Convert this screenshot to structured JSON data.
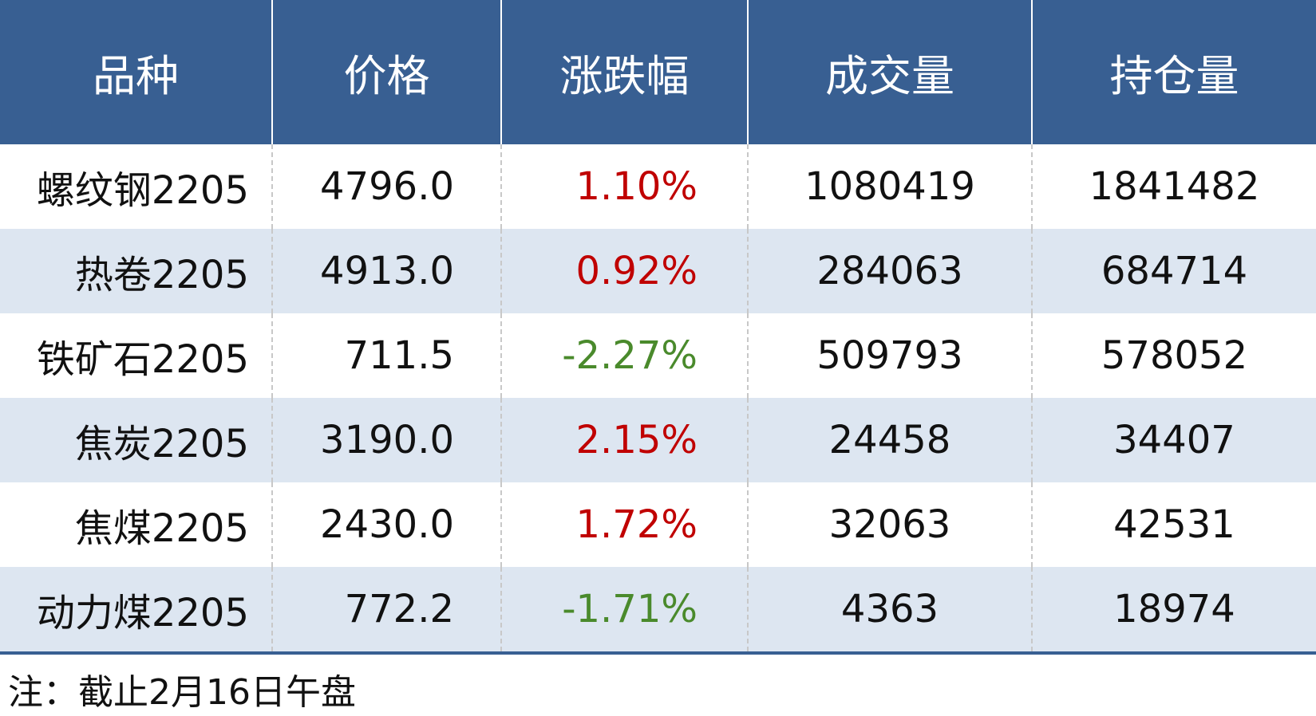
{
  "table": {
    "headers": [
      "品种",
      "价格",
      "涨跌幅",
      "成交量",
      "持仓量"
    ],
    "rows": [
      [
        "螺纹钢2205",
        "4796.0",
        "1.10%",
        "1080419",
        "1841482"
      ],
      [
        "热卷2205",
        "4913.0",
        "0.92%",
        "284063",
        "684714"
      ],
      [
        "铁矿石2205",
        "711.5",
        "-2.27%",
        "509793",
        "578052"
      ],
      [
        "焦炭2205",
        "3190.0",
        "2.15%",
        "24458",
        "34407"
      ],
      [
        "焦煤2205",
        "2430.0",
        "1.72%",
        "32063",
        "42531"
      ],
      [
        "动力煤2205",
        "772.2",
        "-1.71%",
        "4363",
        "18974"
      ]
    ]
  },
  "note": "注：截止2月16日午盘"
}
